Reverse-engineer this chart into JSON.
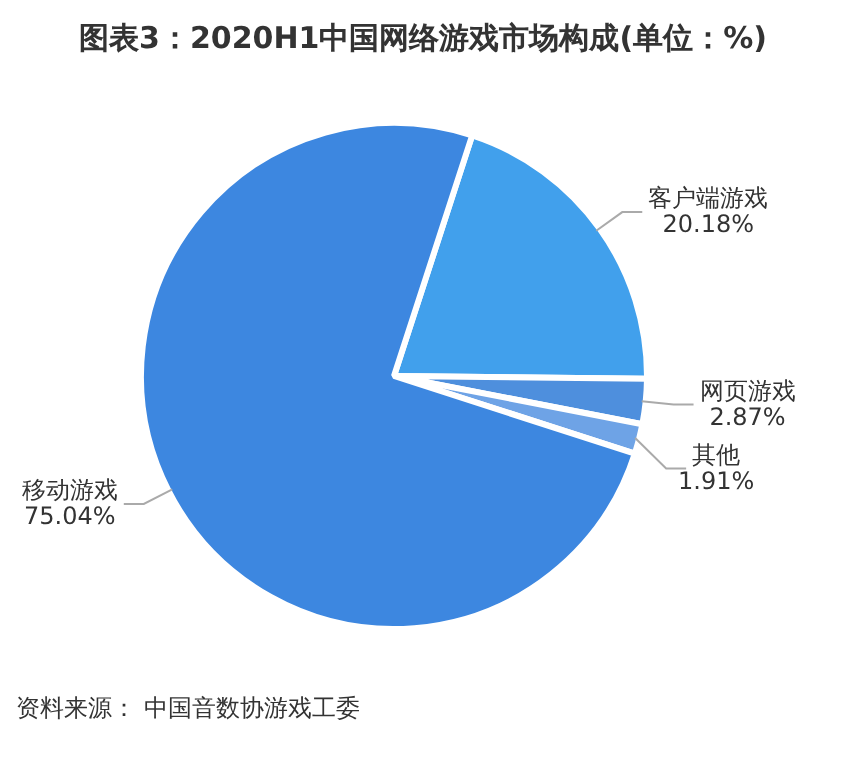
{
  "chart_data": {
    "type": "pie",
    "title": "图表3：2020H1中国网络游戏市场构成(单位：%)",
    "categories": [
      "客户端游戏",
      "网页游戏",
      "其他",
      "移动游戏"
    ],
    "values": [
      20.18,
      2.87,
      1.91,
      75.04
    ],
    "colors": [
      "#41a0ec",
      "#4e8fdd",
      "#6ea3e6",
      "#3d87e0"
    ],
    "value_labels": [
      "20.18%",
      "2.87%",
      "1.91%",
      "75.04%"
    ],
    "legend": false,
    "annotations": [
      "资料来源： 中国音数协游戏工委"
    ]
  }
}
